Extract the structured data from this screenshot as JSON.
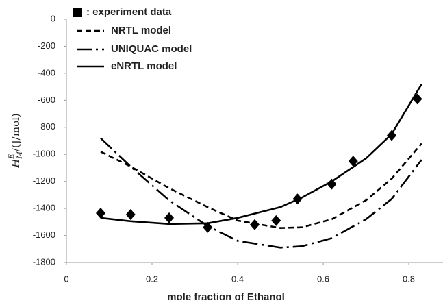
{
  "chart_data": {
    "type": "line",
    "x_label": "mole fraction of Ethanol",
    "y_label": {
      "symbol": "H",
      "sub": "M",
      "sup": "E",
      "unit": "/(J/mol)"
    },
    "xlim": [
      0,
      0.88
    ],
    "xticks": [
      0,
      0.2,
      0.4,
      0.6,
      0.8
    ],
    "ylim": [
      -1800,
      0
    ],
    "yticks": [
      -1800,
      -1600,
      -1400,
      -1200,
      -1000,
      -800,
      -600,
      -400,
      -200,
      0
    ],
    "grid": false,
    "legend": "top-left",
    "series": [
      {
        "name": ": experiment data",
        "color": "#000000",
        "style": "markers",
        "x": [
          0.08,
          0.15,
          0.24,
          0.33,
          0.44,
          0.49,
          0.54,
          0.62,
          0.67,
          0.76,
          0.82
        ],
        "values": [
          -1435,
          -1445,
          -1470,
          -1540,
          -1520,
          -1490,
          -1330,
          -1220,
          -1050,
          -860,
          -590
        ]
      },
      {
        "name": "NRTL model",
        "color": "#000000",
        "style": "dashed",
        "x": [
          0.08,
          0.15,
          0.24,
          0.33,
          0.4,
          0.5,
          0.55,
          0.62,
          0.7,
          0.76,
          0.83
        ],
        "values": [
          -980,
          -1090,
          -1250,
          -1390,
          -1490,
          -1545,
          -1540,
          -1480,
          -1340,
          -1180,
          -920
        ]
      },
      {
        "name": "UNIQUAC model",
        "color": "#000000",
        "style": "dashdot",
        "x": [
          0.08,
          0.15,
          0.24,
          0.33,
          0.4,
          0.5,
          0.55,
          0.62,
          0.7,
          0.76,
          0.83
        ],
        "values": [
          -880,
          -1090,
          -1340,
          -1530,
          -1640,
          -1690,
          -1680,
          -1620,
          -1480,
          -1330,
          -1040
        ]
      },
      {
        "name": "eNRTL model",
        "color": "#000000",
        "style": "solid",
        "x": [
          0.08,
          0.15,
          0.24,
          0.33,
          0.4,
          0.5,
          0.55,
          0.62,
          0.7,
          0.76,
          0.83
        ],
        "values": [
          -1470,
          -1495,
          -1515,
          -1510,
          -1470,
          -1390,
          -1320,
          -1200,
          -1030,
          -850,
          -480
        ]
      }
    ]
  }
}
